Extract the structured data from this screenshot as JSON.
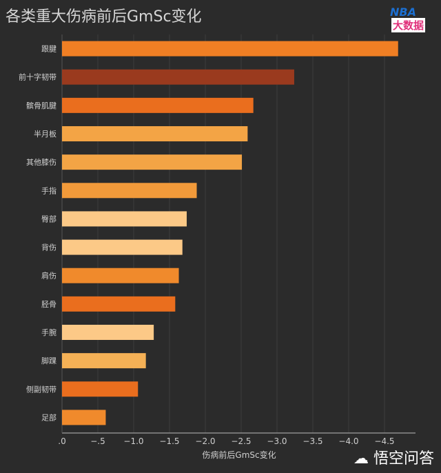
{
  "chart_data": {
    "type": "bar",
    "orientation": "horizontal",
    "title": "各类重大伤病前后GmSc变化",
    "xlabel": "伤病前后GmSc变化",
    "ylabel": "",
    "xlim": [
      0,
      -4.85
    ],
    "xticks": [
      0,
      -0.5,
      -1.0,
      -1.5,
      -2.0,
      -2.5,
      -3.0,
      -3.5,
      -4.0,
      -4.5
    ],
    "xtick_labels": [
      ".0",
      "−.5",
      "−1.0",
      "−1.5",
      "−2.0",
      "−2.5",
      "−3.0",
      "−3.5",
      "−4.0",
      "−4.5"
    ],
    "grid": true,
    "categories": [
      "跟腱",
      "前十字韧带",
      "髌骨肌腱",
      "半月板",
      "其他膝伤",
      "手指",
      "臀部",
      "背伤",
      "肩伤",
      "胫骨",
      "手腕",
      "脚踝",
      "侧副韧带",
      "足部"
    ],
    "values": [
      -4.69,
      -3.24,
      -2.67,
      -2.59,
      -2.51,
      -1.88,
      -1.74,
      -1.68,
      -1.63,
      -1.58,
      -1.28,
      -1.17,
      -1.06,
      -0.61
    ],
    "colors": [
      "#f07f24",
      "#9a3a1e",
      "#ea6e1e",
      "#f3a445",
      "#f3a445",
      "#f29a3a",
      "#fcc987",
      "#fcc987",
      "#f08a2c",
      "#ea6e1e",
      "#fcc987",
      "#f5b156",
      "#ea6e1e",
      "#f08a2c"
    ]
  },
  "logo": {
    "line1": "NBA",
    "line2": "大数据"
  },
  "watermark": "悟空问答"
}
